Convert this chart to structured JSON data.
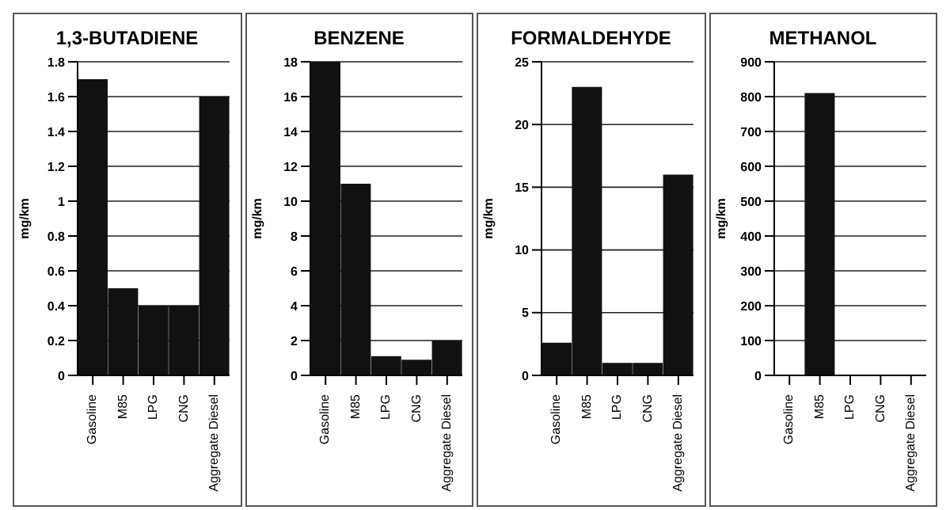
{
  "chart_data": [
    {
      "type": "bar",
      "title": "1,3-BUTADIENE",
      "ylabel": "mg/km",
      "categories": [
        "Gasoline",
        "M85",
        "LPG",
        "CNG",
        "Aggregate Diesel"
      ],
      "values": [
        1.7,
        0.5,
        0.4,
        0.4,
        1.6
      ],
      "color": "#111111",
      "ylim": [
        0,
        1.8
      ],
      "yticks": [
        0,
        0.2,
        0.4,
        0.6,
        0.8,
        1,
        1.2,
        1.4,
        1.6,
        1.8
      ],
      "grid": "y"
    },
    {
      "type": "bar",
      "title": "BENZENE",
      "ylabel": "mg/km",
      "categories": [
        "Gasoline",
        "M85",
        "LPG",
        "CNG",
        "Aggregate Diesel"
      ],
      "values": [
        18,
        11,
        1.1,
        0.9,
        2
      ],
      "color": "#111111",
      "ylim": [
        0,
        18
      ],
      "yticks": [
        0,
        2,
        4,
        6,
        8,
        10,
        12,
        14,
        16,
        18
      ],
      "grid": "y"
    },
    {
      "type": "bar",
      "title": "FORMALDEHYDE",
      "ylabel": "mg/km",
      "categories": [
        "Gasoline",
        "M85",
        "LPG",
        "CNG",
        "Aggregate Diesel"
      ],
      "values": [
        2.6,
        23,
        1,
        1,
        16
      ],
      "color": "#111111",
      "ylim": [
        0,
        25
      ],
      "yticks": [
        0,
        5,
        10,
        15,
        20,
        25
      ],
      "grid": "y"
    },
    {
      "type": "bar",
      "title": "METHANOL",
      "ylabel": "mg/km",
      "categories": [
        "Gasoline",
        "M85",
        "LPG",
        "CNG",
        "Aggregate Diesel"
      ],
      "values": [
        0,
        810,
        0,
        0,
        0
      ],
      "color": "#111111",
      "ylim": [
        0,
        900
      ],
      "yticks": [
        0,
        100,
        200,
        300,
        400,
        500,
        600,
        700,
        800,
        900
      ],
      "grid": "y"
    }
  ]
}
